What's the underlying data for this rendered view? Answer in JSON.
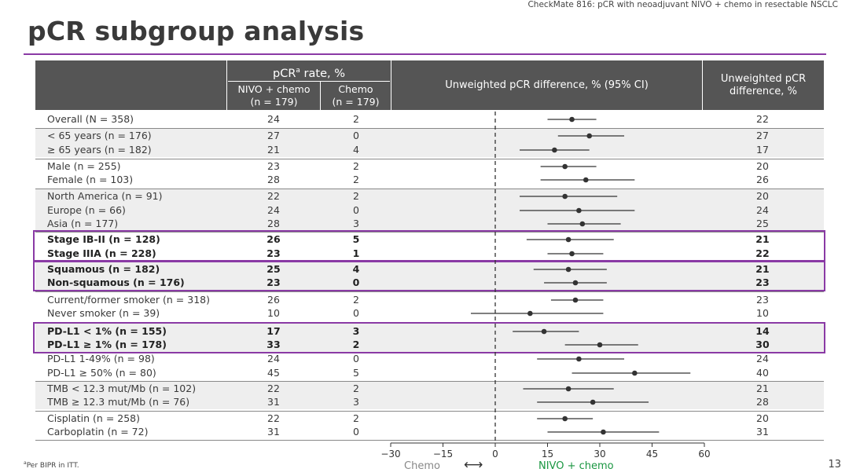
{
  "header_caption": "CheckMate 816: pCR with neoadjuvant NIVO + chemo in resectable NSCLC",
  "title": "pCR subgroup analysis",
  "table_header": {
    "pcr_rate_prefix": "pCR",
    "pcr_rate_sup": "a",
    "pcr_rate_suffix": " rate, %",
    "nivo_col": "NIVO + chemo",
    "nivo_n": "(n = 179)",
    "chemo_col": "Chemo",
    "chemo_n": "(n = 179)",
    "diff_col": "Unweighted pCR difference, % (95% CI)",
    "unweighted_col_line1": "Unweighted pCR",
    "unweighted_col_line2": "difference, %"
  },
  "footnote": "aPer BIPR in ITT.",
  "page_number": "13",
  "axis_labels": {
    "left": "Chemo",
    "arrow": "⟷",
    "right": "NIVO + chemo"
  },
  "colors": {
    "accent": "#8a3aa5",
    "header_bg": "#555555",
    "nivo_green": "#1a9641",
    "row_shade": "#eeeeee"
  },
  "chart_data": {
    "type": "forest",
    "xlabel_left": "Chemo",
    "xlabel_right": "NIVO + chemo",
    "xlim": [
      -30,
      60
    ],
    "xticks": [
      -30,
      -15,
      0,
      15,
      30,
      45,
      60
    ],
    "xtick_labels": [
      "−30",
      "−15",
      "0",
      "15",
      "30",
      "45",
      "60"
    ],
    "reference_line": 0,
    "rows": [
      {
        "label": "Overall (N = 358)",
        "nivo": "24",
        "chemo": "2",
        "diff": "22",
        "point": 22,
        "ci": [
          15,
          29
        ],
        "bold": false
      },
      {
        "label": "< 65 years (n = 176)",
        "nivo": "27",
        "chemo": "0",
        "diff": "27",
        "point": 27,
        "ci": [
          18,
          37
        ],
        "bold": false
      },
      {
        "label": "≥ 65 years (n = 182)",
        "nivo": "21",
        "chemo": "4",
        "diff": "17",
        "point": 17,
        "ci": [
          7,
          27
        ],
        "bold": false
      },
      {
        "label": "Male (n = 255)",
        "nivo": "23",
        "chemo": "2",
        "diff": "20",
        "point": 20,
        "ci": [
          13,
          29
        ],
        "bold": false
      },
      {
        "label": "Female (n = 103)",
        "nivo": "28",
        "chemo": "2",
        "diff": "26",
        "point": 26,
        "ci": [
          13,
          40
        ],
        "bold": false
      },
      {
        "label": "North America (n = 91)",
        "nivo": "22",
        "chemo": "2",
        "diff": "20",
        "point": 20,
        "ci": [
          7,
          35
        ],
        "bold": false
      },
      {
        "label": "Europe (n = 66)",
        "nivo": "24",
        "chemo": "0",
        "diff": "24",
        "point": 24,
        "ci": [
          7,
          40
        ],
        "bold": false
      },
      {
        "label": "Asia (n = 177)",
        "nivo": "28",
        "chemo": "3",
        "diff": "25",
        "point": 25,
        "ci": [
          15,
          36
        ],
        "bold": false
      },
      {
        "label": "Stage IB-II (n = 128)",
        "nivo": "26",
        "chemo": "5",
        "diff": "21",
        "point": 21,
        "ci": [
          9,
          34
        ],
        "bold": true
      },
      {
        "label": "Stage IIIA (n = 228)",
        "nivo": "23",
        "chemo": "1",
        "diff": "22",
        "point": 22,
        "ci": [
          15,
          31
        ],
        "bold": true
      },
      {
        "label": "Squamous (n = 182)",
        "nivo": "25",
        "chemo": "4",
        "diff": "21",
        "point": 21,
        "ci": [
          11,
          32
        ],
        "bold": true
      },
      {
        "label": "Non-squamous (n = 176)",
        "nivo": "23",
        "chemo": "0",
        "diff": "23",
        "point": 23,
        "ci": [
          14,
          32
        ],
        "bold": true
      },
      {
        "label": "Current/former smoker (n = 318)",
        "nivo": "26",
        "chemo": "2",
        "diff": "23",
        "point": 23,
        "ci": [
          16,
          31
        ],
        "bold": false
      },
      {
        "label": "Never smoker (n = 39)",
        "nivo": "10",
        "chemo": "0",
        "diff": "10",
        "point": 10,
        "ci": [
          -7,
          31
        ],
        "bold": false
      },
      {
        "label": "PD-L1 < 1% (n = 155)",
        "nivo": "17",
        "chemo": "3",
        "diff": "14",
        "point": 14,
        "ci": [
          5,
          24
        ],
        "bold": true
      },
      {
        "label": "PD-L1 ≥ 1% (n = 178)",
        "nivo": "33",
        "chemo": "2",
        "diff": "30",
        "point": 30,
        "ci": [
          20,
          41
        ],
        "bold": true
      },
      {
        "label": "PD-L1 1-49% (n = 98)",
        "nivo": "24",
        "chemo": "0",
        "diff": "24",
        "point": 24,
        "ci": [
          12,
          37
        ],
        "bold": false
      },
      {
        "label": "PD-L1 ≥ 50% (n = 80)",
        "nivo": "45",
        "chemo": "5",
        "diff": "40",
        "point": 40,
        "ci": [
          22,
          56
        ],
        "bold": false
      },
      {
        "label": "TMB < 12.3 mut/Mb (n = 102)",
        "nivo": "22",
        "chemo": "2",
        "diff": "21",
        "point": 21,
        "ci": [
          8,
          34
        ],
        "bold": false
      },
      {
        "label": "TMB ≥ 12.3 mut/Mb (n = 76)",
        "nivo": "31",
        "chemo": "3",
        "diff": "28",
        "point": 28,
        "ci": [
          12,
          44
        ],
        "bold": false
      },
      {
        "label": "Cisplatin (n = 258)",
        "nivo": "22",
        "chemo": "2",
        "diff": "20",
        "point": 20,
        "ci": [
          12,
          28
        ],
        "bold": false
      },
      {
        "label": "Carboplatin (n = 72)",
        "nivo": "31",
        "chemo": "0",
        "diff": "31",
        "point": 31,
        "ci": [
          15,
          47
        ],
        "bold": false
      }
    ]
  }
}
